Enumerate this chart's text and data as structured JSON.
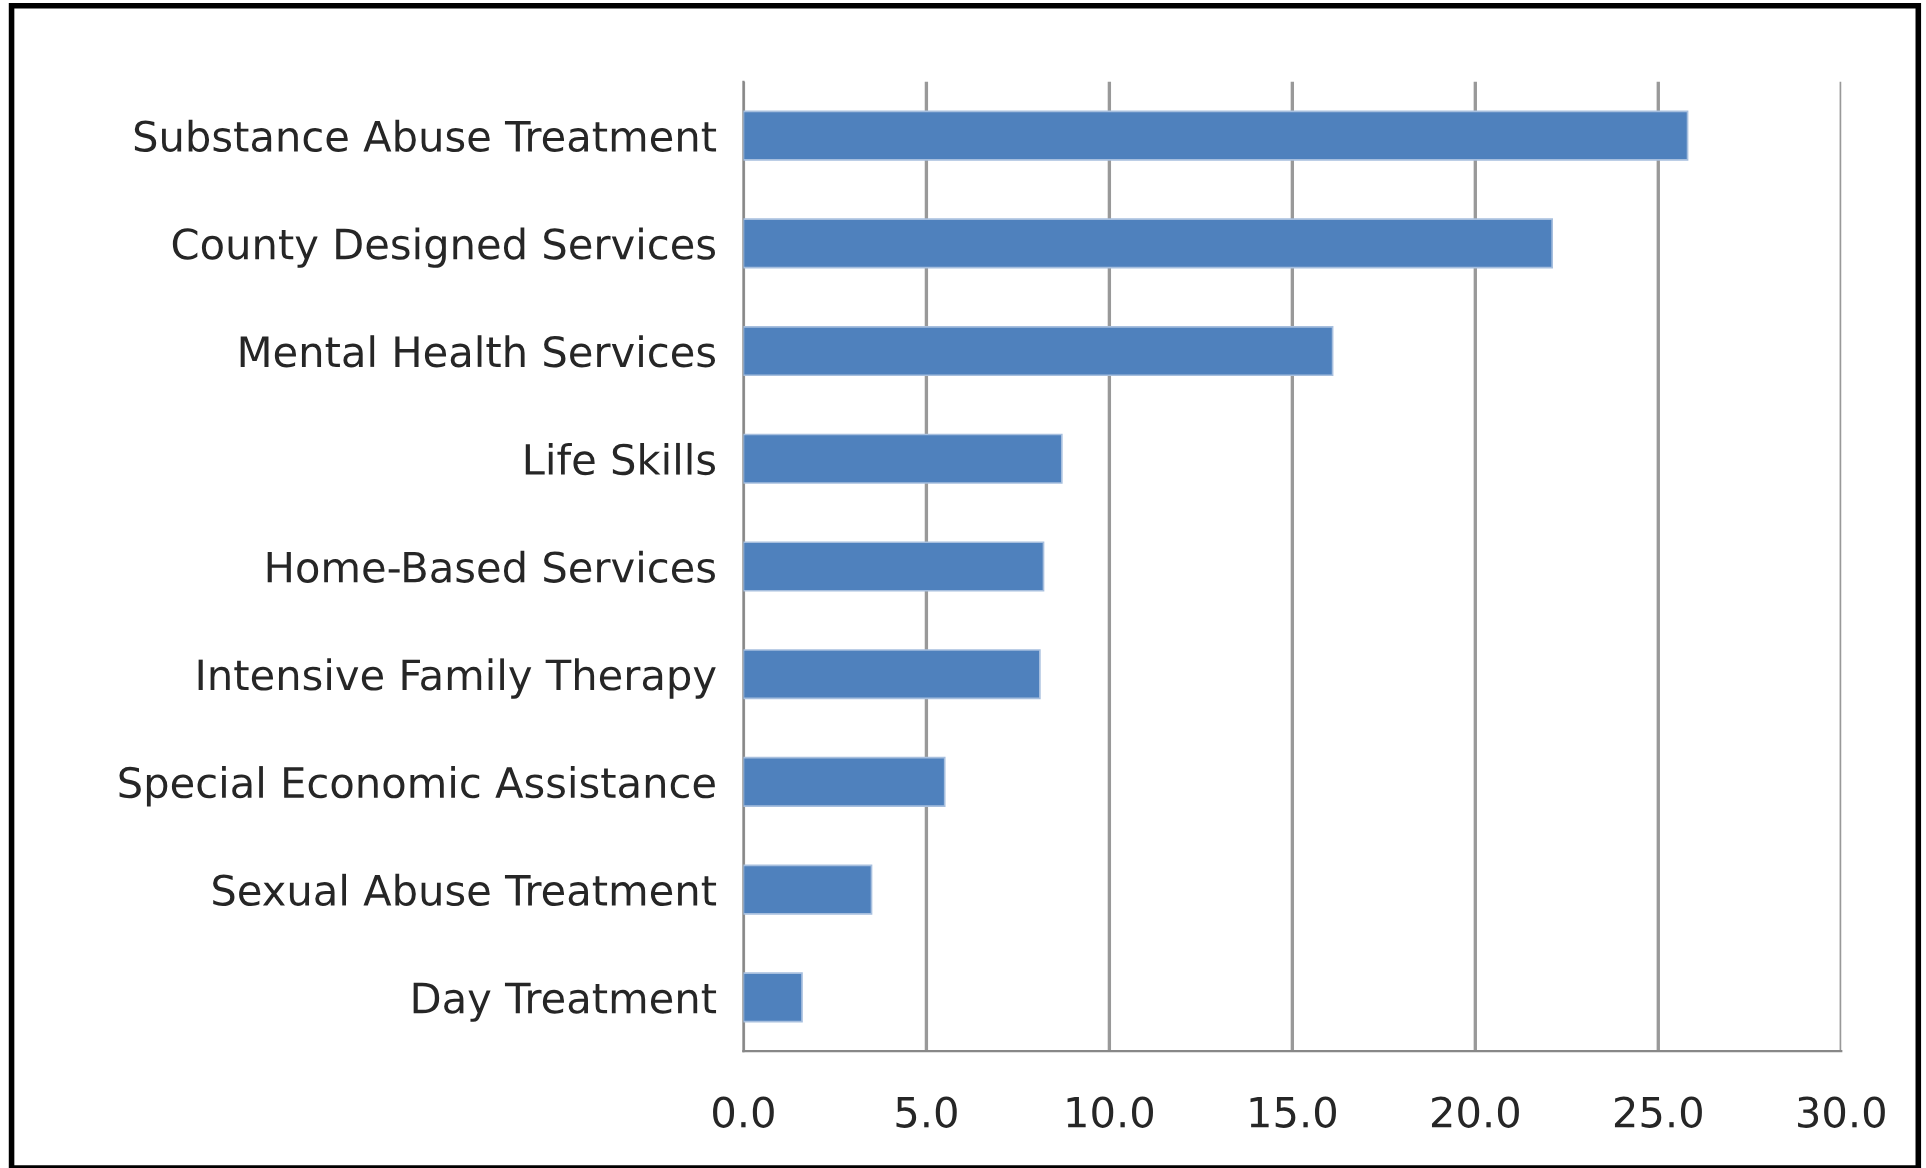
{
  "chart_data": {
    "type": "bar",
    "orientation": "horizontal",
    "categories": [
      "Substance Abuse Treatment",
      "County Designed Services",
      "Mental Health Services",
      "Life Skills",
      "Home-Based Services",
      "Intensive Family Therapy",
      "Special Economic Assistance",
      "Sexual Abuse Treatment",
      "Day Treatment"
    ],
    "series": [
      {
        "color": "#4f81bd",
        "values": [
          25.8,
          22.1,
          16.1,
          8.7,
          8.2,
          8.1,
          5.5,
          3.5,
          1.6
        ]
      }
    ],
    "xlim": [
      0,
      30
    ],
    "xticks": [
      {
        "value": 0,
        "label": "0.0"
      },
      {
        "value": 5,
        "label": "5.0"
      },
      {
        "value": 10,
        "label": "10.0"
      },
      {
        "value": 15,
        "label": "15.0"
      },
      {
        "value": 20,
        "label": "20.0"
      },
      {
        "value": 25,
        "label": "25.0"
      },
      {
        "value": 30,
        "label": "30.0"
      }
    ],
    "grid": "x",
    "legend": false
  }
}
